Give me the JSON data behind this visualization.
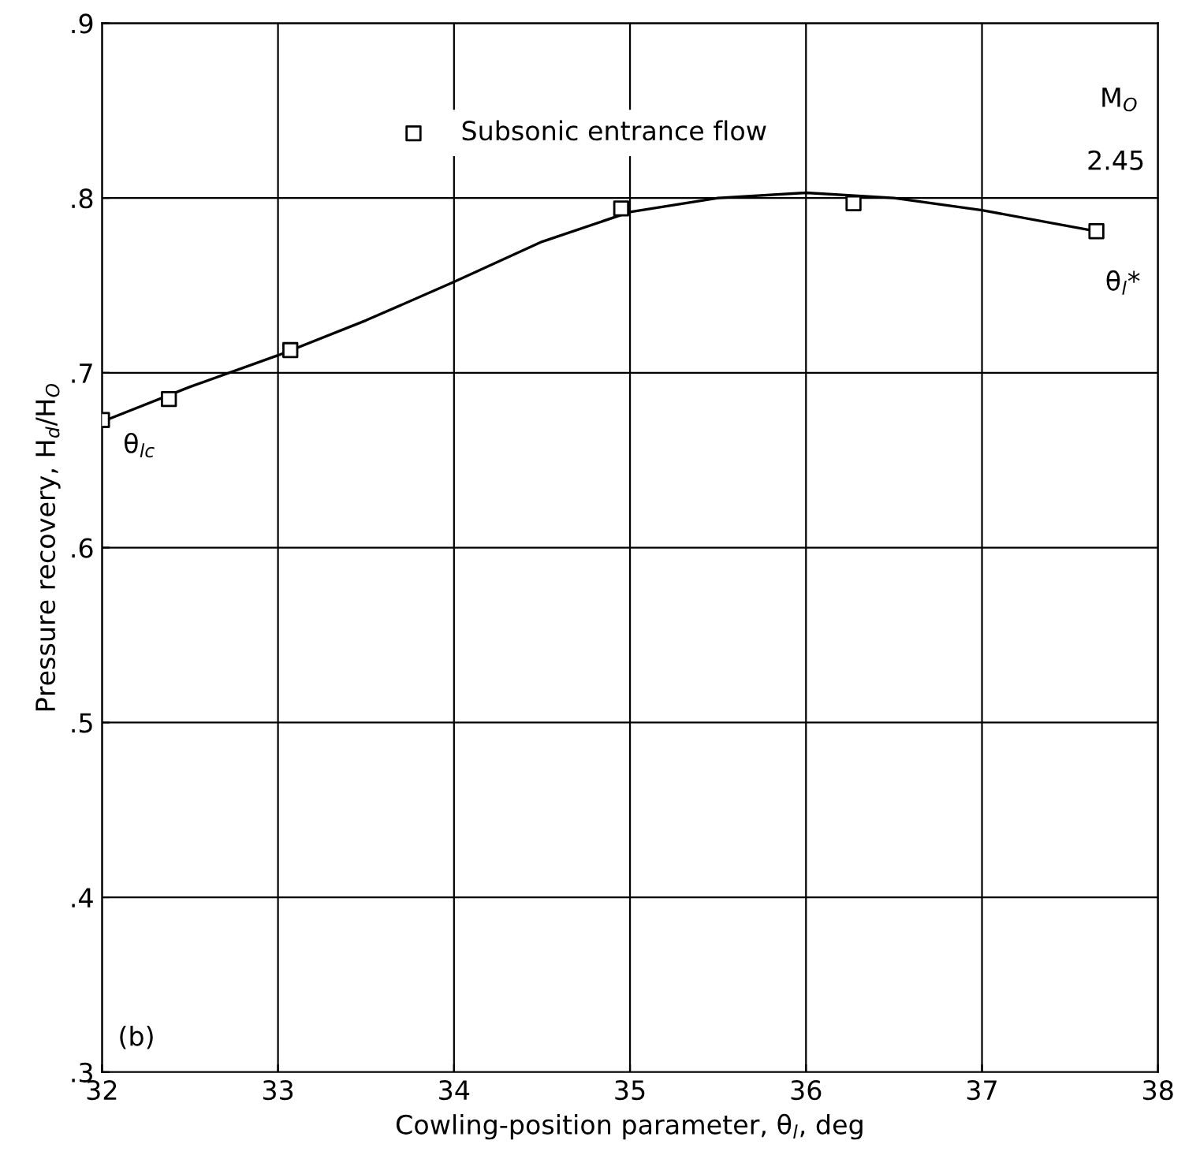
{
  "chart_data": {
    "type": "scatter",
    "xlabel": "Cowling-position parameter, θ$_{l}$, deg",
    "ylabel": "Pressure recovery, H$_{d}$/H$_{O}$",
    "xlim": [
      32,
      38
    ],
    "ylim": [
      0.3,
      0.9
    ],
    "xticks": [
      32,
      33,
      34,
      35,
      36,
      37,
      38
    ],
    "yticks": [
      {
        "value": 0.3,
        "label": ".3"
      },
      {
        "value": 0.4,
        "label": ".4"
      },
      {
        "value": 0.5,
        "label": ".5"
      },
      {
        "value": 0.6,
        "label": ".6"
      },
      {
        "value": 0.7,
        "label": ".7"
      },
      {
        "value": 0.8,
        "label": ".8"
      },
      {
        "value": 0.9,
        "label": ".9"
      }
    ],
    "grid": true,
    "legend": "top",
    "series": [
      {
        "name": "Subsonic entrance flow",
        "marker": "square",
        "color": "#000000",
        "x": [
          32.0,
          32.38,
          33.07,
          34.95,
          36.27,
          37.65
        ],
        "values": [
          0.673,
          0.685,
          0.713,
          0.794,
          0.797,
          0.781
        ]
      },
      {
        "type": "line",
        "marker": "none",
        "line_style": "solid",
        "color": "#000000",
        "x": [
          32.0,
          32.5,
          33.0,
          33.5,
          34.0,
          34.5,
          35.0,
          35.5,
          36.0,
          36.5,
          37.0,
          37.65
        ],
        "values": [
          0.672,
          0.692,
          0.71,
          0.73,
          0.752,
          0.775,
          0.792,
          0.8,
          0.803,
          0.8,
          0.793,
          0.781
        ]
      }
    ],
    "annotations": [
      "M$_{O}$",
      "2.45",
      "θ$_{l}$*",
      "θ$_{lc}$",
      "(b)"
    ]
  }
}
